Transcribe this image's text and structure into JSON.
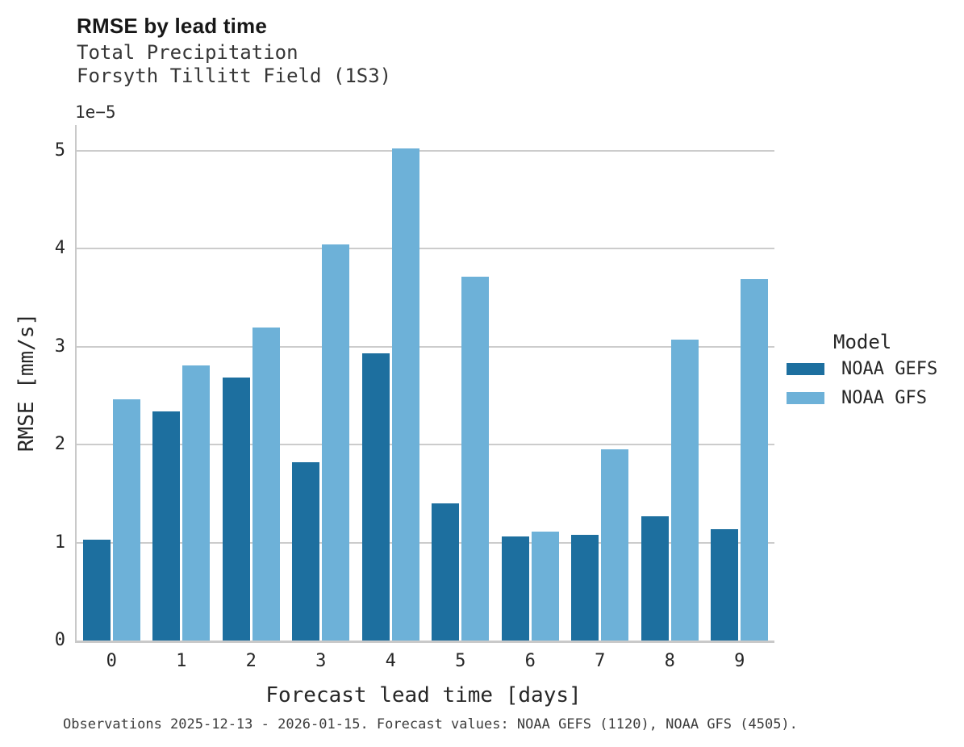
{
  "header": {
    "title": "RMSE by lead time",
    "subtitle_line1": "Total Precipitation",
    "subtitle_line2": "Forsyth Tillitt Field (1S3)"
  },
  "axes": {
    "xlabel": "Forecast lead time [days]",
    "ylabel": "RMSE [mm/s]",
    "y_offset_label": "1e−5"
  },
  "legend": {
    "title": "Model"
  },
  "footer": {
    "text": "Observations 2025-12-13 - 2026-01-15. Forecast values: NOAA GEFS (1120), NOAA GFS (4505)."
  },
  "colors": {
    "gefs_dark_blue": "#1d6f9f",
    "gfs_light_blue": "#6db1d8",
    "gridline_gray": "#cccccc"
  },
  "chart_data": {
    "type": "bar",
    "title": "RMSE by lead time",
    "subtitle": [
      "Total Precipitation",
      "Forsyth Tillitt Field (1S3)"
    ],
    "xlabel": "Forecast lead time [days]",
    "ylabel": "RMSE [mm/s]",
    "y_value_scale": "1e-5",
    "categories": [
      "0",
      "1",
      "2",
      "3",
      "4",
      "5",
      "6",
      "7",
      "8",
      "9"
    ],
    "series": [
      {
        "name": "NOAA GEFS",
        "color": "#1d6f9f",
        "values": [
          1.03,
          2.34,
          2.68,
          1.82,
          2.93,
          1.4,
          1.06,
          1.08,
          1.27,
          1.14
        ]
      },
      {
        "name": "NOAA GFS",
        "color": "#6db1d8",
        "values": [
          2.46,
          2.81,
          3.19,
          4.04,
          5.02,
          3.71,
          1.11,
          1.95,
          3.07,
          3.69
        ]
      }
    ],
    "yticks": [
      0,
      1,
      2,
      3,
      4,
      5
    ],
    "ylim": [
      0,
      5.26
    ],
    "grid": "horizontal",
    "legend_title": "Model",
    "legend_position": "right",
    "legend_entries": [
      "NOAA GEFS",
      "NOAA GFS"
    ]
  }
}
